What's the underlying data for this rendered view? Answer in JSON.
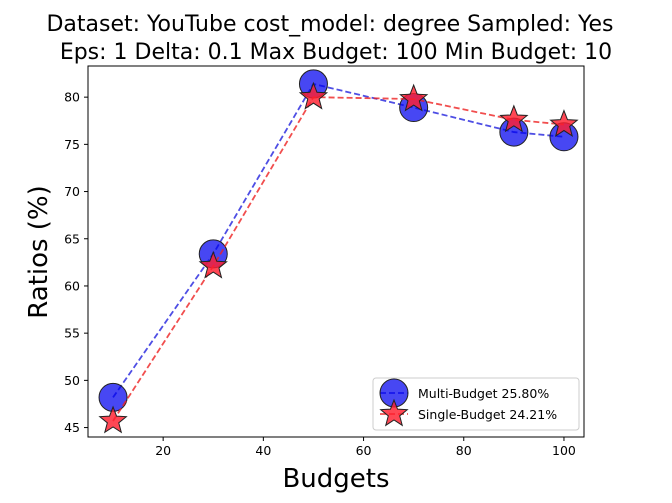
{
  "chart_data": {
    "type": "line",
    "title_lines": [
      "Dataset: YouTube cost_model: degree Sampled: Yes",
      "Eps: 1 Delta: 0.1 Max Budget: 100 Min Budget: 10"
    ],
    "xlabel": "Budgets",
    "ylabel": "Ratios (%)",
    "xlim": [
      5,
      104
    ],
    "ylim": [
      44,
      83.3
    ],
    "xticks": [
      20,
      40,
      60,
      80,
      100
    ],
    "yticks": [
      45,
      50,
      55,
      60,
      65,
      70,
      75,
      80
    ],
    "grid": false,
    "legend_position": "lower-right",
    "series": [
      {
        "name": "Multi-Budget 25.80%",
        "marker": "circle",
        "color": "#0000ee",
        "line_color": "#2222dd",
        "x": [
          10,
          30,
          50,
          70,
          90,
          100
        ],
        "y": [
          48.2,
          63.4,
          81.4,
          78.9,
          76.3,
          75.8
        ]
      },
      {
        "name": "Single-Budget 24.21%",
        "marker": "star",
        "color": "#ff1f2e",
        "line_color": "#ee2222",
        "x": [
          10,
          30,
          50,
          70,
          90,
          100
        ],
        "y": [
          45.7,
          62.1,
          80.0,
          79.8,
          77.6,
          77.1
        ]
      }
    ]
  }
}
